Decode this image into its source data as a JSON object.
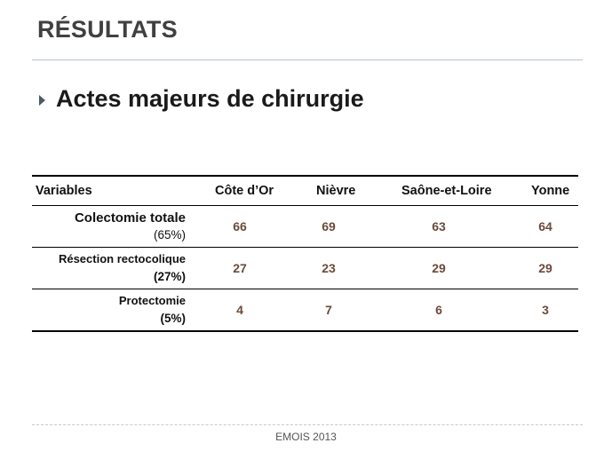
{
  "slide": {
    "title": "RÉSULTATS",
    "bullet": "Actes majeurs de chirurgie",
    "footer": "EMOIS 2013"
  },
  "table": {
    "headers": [
      "Variables",
      "Côte d’Or",
      "Nièvre",
      "Saône-et-Loire",
      "Yonne"
    ],
    "rows": [
      {
        "label": "Colectomie totale",
        "pct": "(65%)",
        "values": [
          "66",
          "69",
          "63",
          "64"
        ]
      },
      {
        "label": "Résection rectocolique",
        "pct": "(27%)",
        "values": [
          "27",
          "23",
          "29",
          "29"
        ]
      },
      {
        "label": "Protectomie",
        "pct": "(5%)",
        "values": [
          "4",
          "7",
          "6",
          "3"
        ]
      }
    ]
  },
  "colors": {
    "value_text": "#6b4a3a",
    "title_text": "#404040",
    "rule": "#b7c3cf"
  }
}
